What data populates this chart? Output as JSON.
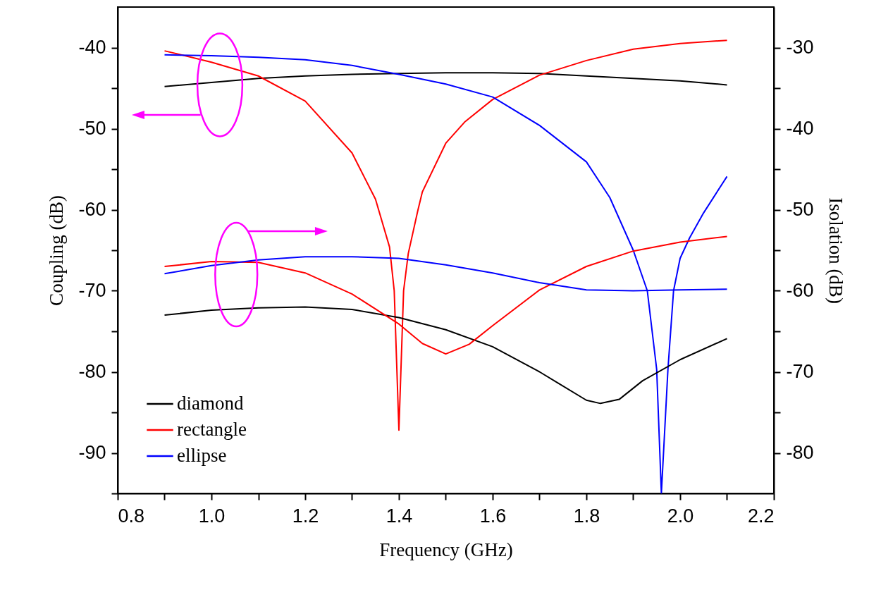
{
  "chart_data": {
    "type": "line",
    "xlabel": "Frequency (GHz)",
    "ylabel": "Coupling (dB)",
    "y2label": "Isolation (dB)",
    "xlim": [
      0.8,
      2.2
    ],
    "xticks": [
      {
        "value": 0.8,
        "label": "0.8"
      },
      {
        "value": 0.9,
        "label": null
      },
      {
        "value": 1.0,
        "label": "1.0"
      },
      {
        "value": 1.1,
        "label": null
      },
      {
        "value": 1.2,
        "label": "1.2"
      },
      {
        "value": 1.3,
        "label": null
      },
      {
        "value": 1.4,
        "label": "1.4"
      },
      {
        "value": 1.5,
        "label": null
      },
      {
        "value": 1.6,
        "label": "1.6"
      },
      {
        "value": 1.7,
        "label": null
      },
      {
        "value": 1.8,
        "label": "1.8"
      },
      {
        "value": 1.9,
        "label": null
      },
      {
        "value": 2.0,
        "label": "2.0"
      },
      {
        "value": 2.1,
        "label": null
      },
      {
        "value": 2.2,
        "label": "2.2"
      }
    ],
    "ylim": [
      -95,
      -35
    ],
    "yticks": [
      {
        "value": -95,
        "label": null
      },
      -90,
      {
        "value": -85,
        "label": null
      },
      -80,
      {
        "value": -75,
        "label": null
      },
      -70,
      {
        "value": -65,
        "label": null
      },
      -60,
      {
        "value": -55,
        "label": null
      },
      -50,
      {
        "value": -45,
        "label": null
      },
      -40
    ],
    "y2lim": [
      -85,
      -25
    ],
    "y2ticks": [
      -80,
      {
        "value": -75,
        "label": null
      },
      -70,
      {
        "value": -65,
        "label": null
      },
      -60,
      {
        "value": -55,
        "label": null
      },
      -50,
      {
        "value": -45,
        "label": null
      },
      -40,
      {
        "value": -35,
        "label": null
      },
      -30
    ],
    "legend": "bottom left",
    "series": [
      {
        "name": "diamond",
        "color": "#000000",
        "x": [
          0.9,
          1.0,
          1.1,
          1.2,
          1.3,
          1.4,
          1.5,
          1.6,
          1.7,
          1.8,
          1.9,
          2.0,
          2.1
        ],
        "values": [
          -44.8,
          -44.3,
          -43.8,
          -43.5,
          -43.3,
          -43.2,
          -43.1,
          -43.1,
          -43.2,
          -43.5,
          -43.8,
          -44.1,
          -44.6
        ]
      },
      {
        "name": "rectangle",
        "color": "#ff0000",
        "x": [
          0.9,
          1.0,
          1.1,
          1.2,
          1.3,
          1.35,
          1.38,
          1.39,
          1.4,
          1.41,
          1.42,
          1.44,
          1.45,
          1.5,
          1.54,
          1.6,
          1.7,
          1.8,
          1.9,
          2.0,
          2.1
        ],
        "values": [
          -40.4,
          -41.8,
          -43.5,
          -46.6,
          -53.0,
          -58.7,
          -64.6,
          -70.0,
          -87.2,
          -70.0,
          -65.4,
          -60.2,
          -57.8,
          -51.8,
          -49.2,
          -46.4,
          -43.4,
          -41.6,
          -40.2,
          -39.5,
          -39.1
        ]
      },
      {
        "name": "ellipse",
        "color": "#0000ff",
        "x": [
          0.9,
          1.0,
          1.1,
          1.2,
          1.3,
          1.4,
          1.5,
          1.6,
          1.7,
          1.8,
          1.85,
          1.9,
          1.93,
          1.95,
          1.96,
          1.974,
          1.986,
          2.0,
          2.02,
          2.05,
          2.1
        ],
        "values": [
          -40.9,
          -41.0,
          -41.2,
          -41.5,
          -42.2,
          -43.3,
          -44.5,
          -46.1,
          -49.6,
          -54.1,
          -58.5,
          -65.0,
          -70.0,
          -79.7,
          -95.0,
          -79.7,
          -70.0,
          -66.0,
          -63.5,
          -60.4,
          -55.9
        ]
      },
      {
        "color": "#000000",
        "axis": "y2",
        "x": [
          0.9,
          1.0,
          1.1,
          1.2,
          1.3,
          1.4,
          1.5,
          1.6,
          1.7,
          1.74,
          1.8,
          1.83,
          1.87,
          1.92,
          2.0,
          2.1
        ],
        "values": [
          -63.0,
          -62.4,
          -62.1,
          -62.0,
          -62.3,
          -63.3,
          -64.8,
          -66.9,
          -70.0,
          -71.4,
          -73.5,
          -73.9,
          -73.4,
          -71.1,
          -68.5,
          -65.9
        ]
      },
      {
        "color": "#ff0000",
        "axis": "y2",
        "x": [
          0.9,
          1.0,
          1.1,
          1.2,
          1.3,
          1.4,
          1.45,
          1.5,
          1.55,
          1.6,
          1.7,
          1.8,
          1.9,
          2.0,
          2.1
        ],
        "values": [
          -57.0,
          -56.4,
          -56.5,
          -57.8,
          -60.4,
          -64.1,
          -66.5,
          -67.8,
          -66.6,
          -64.3,
          -59.9,
          -57.0,
          -55.1,
          -54.0,
          -53.3
        ]
      },
      {
        "color": "#0000ff",
        "axis": "y2",
        "x": [
          0.9,
          1.0,
          1.1,
          1.2,
          1.3,
          1.4,
          1.5,
          1.6,
          1.7,
          1.8,
          1.9,
          2.0,
          2.1
        ],
        "values": [
          -57.9,
          -56.9,
          -56.2,
          -55.8,
          -55.8,
          -56.0,
          -56.8,
          -57.8,
          -59.0,
          -59.9,
          -60.0,
          -59.9,
          -59.8
        ]
      }
    ]
  }
}
